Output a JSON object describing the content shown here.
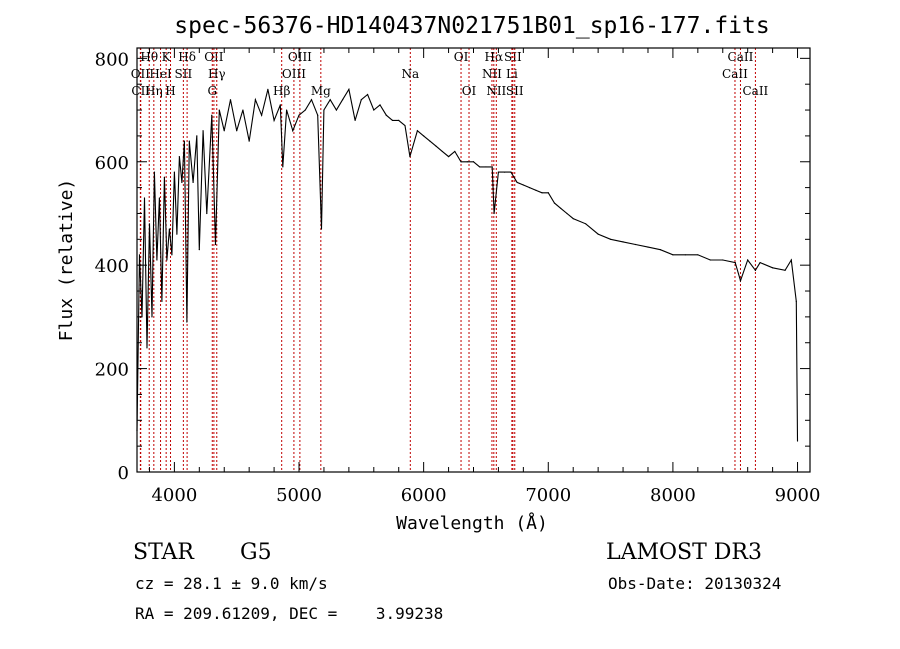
{
  "chart_data": {
    "type": "line",
    "title": "spec-56376-HD140437N021751B01_sp16-177.fits",
    "xlabel": "Wavelength (Å)",
    "ylabel": "Flux (relative)",
    "xlim": [
      3700,
      9100
    ],
    "ylim": [
      0,
      820
    ],
    "xticks": [
      4000,
      5000,
      6000,
      7000,
      8000,
      9000
    ],
    "yticks": [
      0,
      200,
      400,
      600,
      800
    ],
    "grid": false,
    "series": [
      {
        "name": "flux",
        "x": [
          3700,
          3720,
          3740,
          3760,
          3780,
          3800,
          3820,
          3840,
          3860,
          3880,
          3900,
          3920,
          3940,
          3960,
          3980,
          4000,
          4020,
          4040,
          4060,
          4080,
          4100,
          4120,
          4150,
          4180,
          4200,
          4230,
          4260,
          4300,
          4330,
          4360,
          4400,
          4450,
          4500,
          4550,
          4600,
          4650,
          4700,
          4750,
          4800,
          4850,
          4870,
          4900,
          4950,
          5000,
          5050,
          5100,
          5150,
          5180,
          5200,
          5250,
          5300,
          5350,
          5400,
          5450,
          5500,
          5550,
          5600,
          5650,
          5700,
          5750,
          5800,
          5850,
          5890,
          5950,
          6000,
          6050,
          6100,
          6150,
          6200,
          6250,
          6300,
          6350,
          6400,
          6450,
          6500,
          6550,
          6565,
          6600,
          6650,
          6700,
          6750,
          6800,
          6850,
          6900,
          6950,
          7000,
          7050,
          7100,
          7150,
          7200,
          7300,
          7400,
          7500,
          7600,
          7700,
          7800,
          7900,
          8000,
          8100,
          8200,
          8300,
          8400,
          8500,
          8542,
          8600,
          8662,
          8700,
          8800,
          8900,
          8950,
          8990,
          9000
        ],
        "values": [
          80,
          420,
          300,
          530,
          240,
          480,
          300,
          580,
          410,
          530,
          330,
          570,
          410,
          470,
          420,
          580,
          460,
          610,
          560,
          640,
          290,
          640,
          560,
          650,
          430,
          660,
          500,
          690,
          440,
          700,
          660,
          720,
          660,
          700,
          640,
          720,
          690,
          740,
          680,
          710,
          590,
          700,
          660,
          690,
          700,
          720,
          690,
          470,
          700,
          720,
          700,
          720,
          740,
          680,
          720,
          730,
          700,
          710,
          690,
          680,
          680,
          670,
          610,
          660,
          650,
          640,
          630,
          620,
          610,
          620,
          600,
          600,
          600,
          590,
          590,
          590,
          500,
          580,
          580,
          580,
          560,
          555,
          550,
          545,
          540,
          540,
          520,
          510,
          500,
          490,
          480,
          460,
          450,
          445,
          440,
          435,
          430,
          420,
          420,
          420,
          410,
          410,
          405,
          370,
          410,
          390,
          405,
          395,
          390,
          410,
          330,
          60
        ]
      }
    ],
    "spectral_lines": [
      {
        "label": "Hθ",
        "wavelength": 3798,
        "row": 1
      },
      {
        "label": "OII",
        "wavelength": 3727,
        "row": 2
      },
      {
        "label": "CII",
        "wavelength": 3730,
        "row": 3
      },
      {
        "label": "Hη",
        "wavelength": 3835,
        "row": 3
      },
      {
        "label": "HeI",
        "wavelength": 3889,
        "row": 2
      },
      {
        "label": "K",
        "wavelength": 3934,
        "row": 1
      },
      {
        "label": "H",
        "wavelength": 3969,
        "row": 3
      },
      {
        "label": "SII",
        "wavelength": 4072,
        "row": 2
      },
      {
        "label": "Hδ",
        "wavelength": 4102,
        "row": 1
      },
      {
        "label": "OII",
        "wavelength": 4317,
        "row": 1
      },
      {
        "label": "Hγ",
        "wavelength": 4340,
        "row": 2
      },
      {
        "label": "G",
        "wavelength": 4304,
        "row": 3
      },
      {
        "label": "Hβ",
        "wavelength": 4861,
        "row": 3
      },
      {
        "label": "OIII",
        "wavelength": 4959,
        "row": 2
      },
      {
        "label": "OIII",
        "wavelength": 5007,
        "row": 1
      },
      {
        "label": "Mg",
        "wavelength": 5175,
        "row": 3
      },
      {
        "label": "Na",
        "wavelength": 5893,
        "row": 2
      },
      {
        "label": "OI",
        "wavelength": 6300,
        "row": 1
      },
      {
        "label": "OI",
        "wavelength": 6364,
        "row": 3
      },
      {
        "label": "NII",
        "wavelength": 6548,
        "row": 2
      },
      {
        "label": "Hα",
        "wavelength": 6563,
        "row": 1
      },
      {
        "label": "NII",
        "wavelength": 6583,
        "row": 3
      },
      {
        "label": "SII",
        "wavelength": 6716,
        "row": 1
      },
      {
        "label": "Li",
        "wavelength": 6708,
        "row": 2
      },
      {
        "label": "SII",
        "wavelength": 6731,
        "row": 3
      },
      {
        "label": "CaII",
        "wavelength": 8542,
        "row": 1
      },
      {
        "label": "CaII",
        "wavelength": 8498,
        "row": 2
      },
      {
        "label": "CaII",
        "wavelength": 8662,
        "row": 3
      }
    ]
  },
  "info": {
    "class": "STAR",
    "subclass": "G5",
    "survey": "LAMOST DR3",
    "cz": "cz = 28.1 ± 9.0 km/s",
    "obs_date": "Obs-Date: 20130324",
    "radec": "RA = 209.61209, DEC =    3.99238"
  },
  "colors": {
    "spectrum": "#000000",
    "line_marker": "#c00000"
  }
}
